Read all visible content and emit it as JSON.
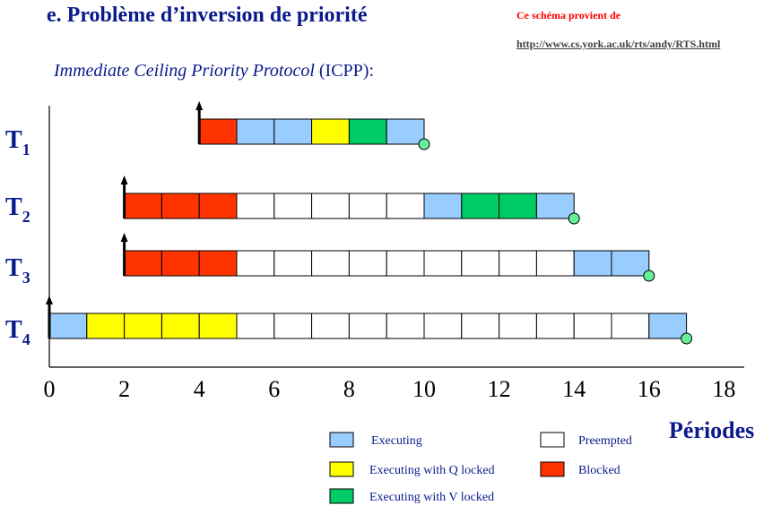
{
  "header": {
    "title": "e. Problème d’inversion de priorité",
    "source_label": "Ce schéma provient de",
    "source_url": "http://www.cs.york.ac.uk/rts/andy/RTS.html",
    "subtitle_italic": "Immediate Ceiling Priority Protocol",
    "subtitle_plain": " (ICPP):"
  },
  "colors": {
    "executing": "#99ccff",
    "executing_q": "#ffff00",
    "executing_v": "#00cc66",
    "preempted": "#ffffff",
    "blocked": "#ff3300",
    "finish_marker": "#66ee99",
    "label": "#0a1a8c"
  },
  "chart_data": {
    "type": "gantt",
    "x_axis_label": "Périodes",
    "x_range": [
      0,
      18
    ],
    "x_ticks": [
      "0",
      "2",
      "4",
      "6",
      "8",
      "10",
      "12",
      "14",
      "16",
      "18"
    ],
    "tasks": [
      {
        "name": "T",
        "sub": "1",
        "release": 4,
        "finish": 10,
        "segments": [
          {
            "start": 4,
            "end": 5,
            "state": "blocked"
          },
          {
            "start": 5,
            "end": 6,
            "state": "executing"
          },
          {
            "start": 6,
            "end": 7,
            "state": "executing"
          },
          {
            "start": 7,
            "end": 8,
            "state": "executing_q"
          },
          {
            "start": 8,
            "end": 9,
            "state": "executing_v"
          },
          {
            "start": 9,
            "end": 10,
            "state": "executing"
          }
        ]
      },
      {
        "name": "T",
        "sub": "2",
        "release": 2,
        "finish": 14,
        "segments": [
          {
            "start": 2,
            "end": 3,
            "state": "blocked"
          },
          {
            "start": 3,
            "end": 4,
            "state": "blocked"
          },
          {
            "start": 4,
            "end": 5,
            "state": "blocked"
          },
          {
            "start": 5,
            "end": 6,
            "state": "preempted"
          },
          {
            "start": 6,
            "end": 7,
            "state": "preempted"
          },
          {
            "start": 7,
            "end": 8,
            "state": "preempted"
          },
          {
            "start": 8,
            "end": 9,
            "state": "preempted"
          },
          {
            "start": 9,
            "end": 10,
            "state": "preempted"
          },
          {
            "start": 10,
            "end": 11,
            "state": "executing"
          },
          {
            "start": 11,
            "end": 12,
            "state": "executing_v"
          },
          {
            "start": 12,
            "end": 13,
            "state": "executing_v"
          },
          {
            "start": 13,
            "end": 14,
            "state": "executing"
          }
        ]
      },
      {
        "name": "T",
        "sub": "3",
        "release": 2,
        "finish": 16,
        "segments": [
          {
            "start": 2,
            "end": 3,
            "state": "blocked"
          },
          {
            "start": 3,
            "end": 4,
            "state": "blocked"
          },
          {
            "start": 4,
            "end": 5,
            "state": "blocked"
          },
          {
            "start": 5,
            "end": 6,
            "state": "preempted"
          },
          {
            "start": 6,
            "end": 7,
            "state": "preempted"
          },
          {
            "start": 7,
            "end": 8,
            "state": "preempted"
          },
          {
            "start": 8,
            "end": 9,
            "state": "preempted"
          },
          {
            "start": 9,
            "end": 10,
            "state": "preempted"
          },
          {
            "start": 10,
            "end": 11,
            "state": "preempted"
          },
          {
            "start": 11,
            "end": 12,
            "state": "preempted"
          },
          {
            "start": 12,
            "end": 13,
            "state": "preempted"
          },
          {
            "start": 13,
            "end": 14,
            "state": "preempted"
          },
          {
            "start": 14,
            "end": 15,
            "state": "executing"
          },
          {
            "start": 15,
            "end": 16,
            "state": "executing"
          }
        ]
      },
      {
        "name": "T",
        "sub": "4",
        "release": 0,
        "finish": 17,
        "segments": [
          {
            "start": 0,
            "end": 1,
            "state": "executing"
          },
          {
            "start": 1,
            "end": 2,
            "state": "executing_q"
          },
          {
            "start": 2,
            "end": 3,
            "state": "executing_q"
          },
          {
            "start": 3,
            "end": 4,
            "state": "executing_q"
          },
          {
            "start": 4,
            "end": 5,
            "state": "executing_q"
          },
          {
            "start": 5,
            "end": 6,
            "state": "preempted"
          },
          {
            "start": 6,
            "end": 7,
            "state": "preempted"
          },
          {
            "start": 7,
            "end": 8,
            "state": "preempted"
          },
          {
            "start": 8,
            "end": 9,
            "state": "preempted"
          },
          {
            "start": 9,
            "end": 10,
            "state": "preempted"
          },
          {
            "start": 10,
            "end": 11,
            "state": "preempted"
          },
          {
            "start": 11,
            "end": 12,
            "state": "preempted"
          },
          {
            "start": 12,
            "end": 13,
            "state": "preempted"
          },
          {
            "start": 13,
            "end": 14,
            "state": "preempted"
          },
          {
            "start": 14,
            "end": 15,
            "state": "preempted"
          },
          {
            "start": 15,
            "end": 16,
            "state": "preempted"
          },
          {
            "start": 16,
            "end": 17,
            "state": "executing"
          }
        ]
      }
    ],
    "legend": [
      {
        "state": "executing",
        "label": "Executing"
      },
      {
        "state": "preempted",
        "label": "Preempted"
      },
      {
        "state": "executing_q",
        "label": "Executing with Q locked"
      },
      {
        "state": "blocked",
        "label": "Blocked"
      },
      {
        "state": "executing_v",
        "label": "Executing with V locked"
      }
    ]
  }
}
